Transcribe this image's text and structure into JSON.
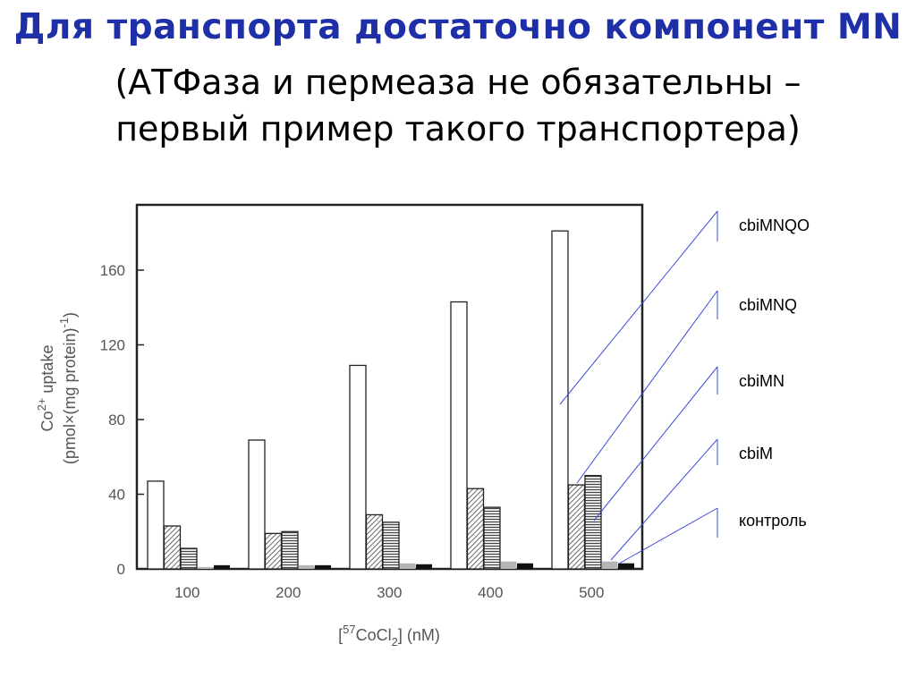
{
  "title": {
    "line1": "Для транспорта достаточно компонент MN",
    "line2": "(АТФаза и пермеаза не обязательны –",
    "line3": "первый пример такого транспортера)"
  },
  "chart_data": {
    "type": "bar",
    "categories": [
      "100",
      "200",
      "300",
      "400",
      "500"
    ],
    "series": [
      {
        "name": "cbiMNQO",
        "values": [
          47,
          69,
          109,
          143,
          181
        ],
        "fill": "white"
      },
      {
        "name": "cbiMNQ",
        "values": [
          23,
          19,
          29,
          43,
          45
        ],
        "fill": "diagonal"
      },
      {
        "name": "cbiMN",
        "values": [
          11,
          20,
          25,
          33,
          50
        ],
        "fill": "horizontal"
      },
      {
        "name": "cbiM",
        "values": [
          1,
          2,
          3,
          4,
          4
        ],
        "fill": "lightgray"
      },
      {
        "name": "контроль",
        "values": [
          2,
          2,
          2.5,
          3,
          3
        ],
        "fill": "black"
      }
    ],
    "xlabel": "[57CoCl2] (nM)",
    "xlabel_parts": {
      "open": "[",
      "sup": "57",
      "mid": "CoCl",
      "sub": "2",
      "close": "] (nM)"
    },
    "ylabel_line1": "Co2+ uptake",
    "ylabel_line1_parts": {
      "pre": "Co",
      "sup": "2+",
      "post": " uptake"
    },
    "ylabel_line2": "(pmol×(mg protein)-1)",
    "ylabel_line2_parts": {
      "pre": "(pmol×(mg protein)",
      "sup": "-1",
      "post": ")"
    },
    "yticks": [
      0,
      40,
      80,
      120,
      160
    ],
    "ylim": [
      0,
      190
    ],
    "grid": false,
    "legend": "right",
    "colors": {
      "outline": "#222222",
      "hatch": "#444444",
      "lightgray": "#b5b5b5",
      "black": "#111111",
      "leader": "#3b4bd8"
    }
  }
}
